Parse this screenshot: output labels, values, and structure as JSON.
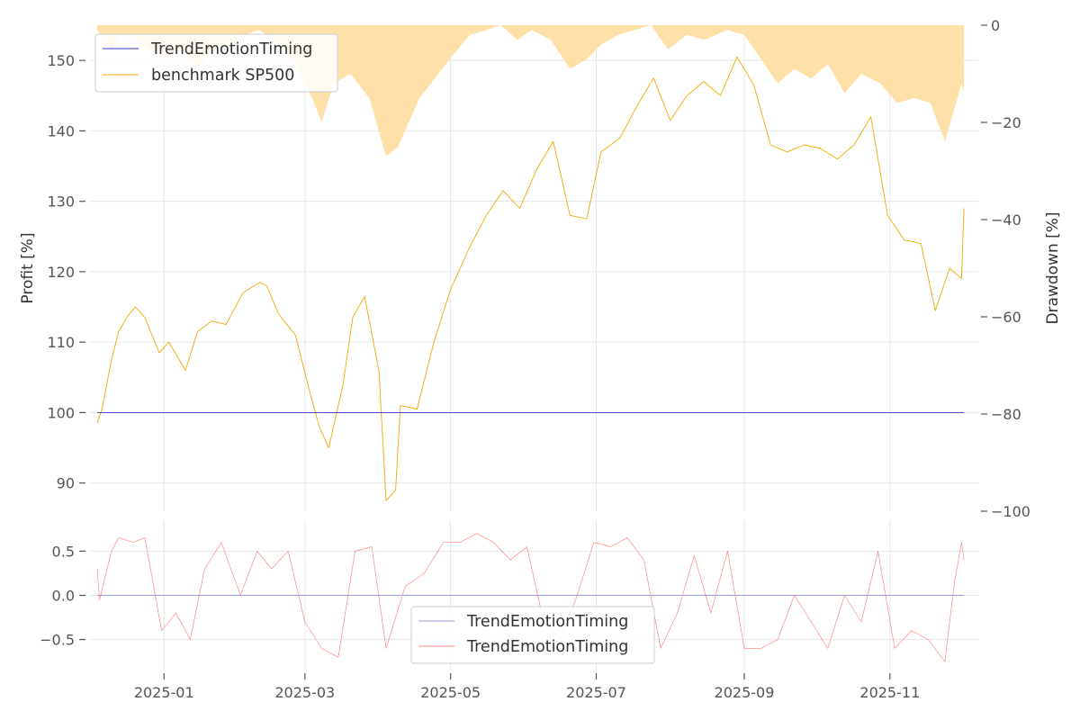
{
  "chart_data": [
    {
      "type": "line",
      "panel": "top",
      "ylabel": "Profit [%]",
      "ylim": [
        86,
        155
      ],
      "yticks": [
        90,
        100,
        110,
        120,
        130,
        140,
        150
      ],
      "x_range": [
        "2024-12-01",
        "2025-12-08"
      ],
      "grid": true,
      "legend": "top-left",
      "series": [
        {
          "name": "TrendEmotionTiming",
          "color": "#3333bb",
          "x": [
            "2024-12-04",
            "2025-12-02"
          ],
          "values": [
            100,
            100
          ]
        },
        {
          "name": "benchmark SP500",
          "color": "#f5a800",
          "x": [
            "2024-12-04",
            "2024-12-06",
            "2024-12-10",
            "2024-12-13",
            "2024-12-17",
            "2024-12-20",
            "2024-12-24",
            "2024-12-30",
            "2025-01-03",
            "2025-01-10",
            "2025-01-15",
            "2025-01-21",
            "2025-01-27",
            "2025-02-03",
            "2025-02-10",
            "2025-02-13",
            "2025-02-18",
            "2025-02-25",
            "2025-03-03",
            "2025-03-07",
            "2025-03-11",
            "2025-03-17",
            "2025-03-21",
            "2025-03-26",
            "2025-04-01",
            "2025-04-04",
            "2025-04-08",
            "2025-04-10",
            "2025-04-17",
            "2025-04-24",
            "2025-05-01",
            "2025-05-09",
            "2025-05-16",
            "2025-05-23",
            "2025-05-30",
            "2025-06-06",
            "2025-06-13",
            "2025-06-20",
            "2025-06-27",
            "2025-07-03",
            "2025-07-11",
            "2025-07-18",
            "2025-07-25",
            "2025-08-01",
            "2025-08-08",
            "2025-08-15",
            "2025-08-22",
            "2025-08-29",
            "2025-09-05",
            "2025-09-12",
            "2025-09-19",
            "2025-09-26",
            "2025-10-03",
            "2025-10-10",
            "2025-10-17",
            "2025-10-24",
            "2025-10-31",
            "2025-11-07",
            "2025-11-14",
            "2025-11-20",
            "2025-11-26",
            "2025-12-01",
            "2025-12-02"
          ],
          "values": [
            98.5,
            100.5,
            107.5,
            111.5,
            113.8,
            115.0,
            113.5,
            108.5,
            110.0,
            106.0,
            111.5,
            113.0,
            112.5,
            117.0,
            118.5,
            118.0,
            114.0,
            111.0,
            103.0,
            98.0,
            95.0,
            104.0,
            113.5,
            116.5,
            106.0,
            87.5,
            89.0,
            101.0,
            100.5,
            110.0,
            117.5,
            123.5,
            128.0,
            131.5,
            129.0,
            134.5,
            138.5,
            128.0,
            127.5,
            137.0,
            139.0,
            143.5,
            147.5,
            141.5,
            145.0,
            147.0,
            145.0,
            150.5,
            146.5,
            138.0,
            137.0,
            138.0,
            137.5,
            136.0,
            138.0,
            142.0,
            128.0,
            124.5,
            124.0,
            114.5,
            120.5,
            119.0,
            129.0
          ]
        }
      ]
    },
    {
      "type": "area",
      "panel": "top-right-axis",
      "ylabel": "Drawdown [%]",
      "ylim": [
        -100,
        0
      ],
      "yticks": [
        0,
        -20,
        -40,
        -60,
        -80,
        -100
      ],
      "series": [
        {
          "name": "",
          "color": "#ffe0a8",
          "x": [
            "2024-12-04",
            "2024-12-10",
            "2024-12-13",
            "2024-12-20",
            "2024-12-31",
            "2025-01-08",
            "2025-01-15",
            "2025-01-21",
            "2025-01-27",
            "2025-02-03",
            "2025-02-10",
            "2025-02-19",
            "2025-02-26",
            "2025-03-04",
            "2025-03-08",
            "2025-03-13",
            "2025-03-20",
            "2025-03-28",
            "2025-04-04",
            "2025-04-09",
            "2025-04-18",
            "2025-04-29",
            "2025-05-09",
            "2025-05-16",
            "2025-05-22",
            "2025-05-29",
            "2025-06-04",
            "2025-06-12",
            "2025-06-20",
            "2025-06-27",
            "2025-07-03",
            "2025-07-10",
            "2025-07-17",
            "2025-07-24",
            "2025-07-31",
            "2025-08-08",
            "2025-08-15",
            "2025-08-25",
            "2025-09-01",
            "2025-09-08",
            "2025-09-15",
            "2025-09-22",
            "2025-09-29",
            "2025-10-06",
            "2025-10-13",
            "2025-10-20",
            "2025-10-28",
            "2025-11-04",
            "2025-11-11",
            "2025-11-18",
            "2025-11-24",
            "2025-12-01",
            "2025-12-02"
          ],
          "values": [
            -1,
            -5,
            -2,
            -3,
            -7,
            -5,
            -9,
            -5,
            -4,
            -2,
            -1,
            -4,
            -9,
            -15,
            -20,
            -12,
            -10,
            -15,
            -27,
            -25,
            -15,
            -8,
            -2,
            -1,
            0,
            -3,
            -1,
            -3,
            -9,
            -7,
            -4,
            -2,
            -1,
            0,
            -5,
            -2,
            -3,
            -1,
            -2,
            -7,
            -12,
            -9,
            -11,
            -8,
            -14,
            -10,
            -12,
            -16,
            -15,
            -16,
            -24,
            -12,
            -14
          ]
        }
      ]
    },
    {
      "type": "line",
      "panel": "bottom",
      "ylim": [
        -0.85,
        0.85
      ],
      "yticks": [
        0.5,
        0.0,
        -0.5
      ],
      "grid": true,
      "legend": "bottom-center",
      "series": [
        {
          "name": "TrendEmotionTiming",
          "color": "#9999dd",
          "x": [
            "2024-12-04",
            "2025-12-02"
          ],
          "values": [
            0.0,
            0.0
          ]
        },
        {
          "name": "TrendEmotionTiming",
          "color": "#ff8888",
          "x": [
            "2024-12-04",
            "2024-12-05",
            "2024-12-10",
            "2024-12-13",
            "2024-12-19",
            "2024-12-24",
            "2024-12-31",
            "2025-01-06",
            "2025-01-12",
            "2025-01-18",
            "2025-01-25",
            "2025-02-02",
            "2025-02-09",
            "2025-02-15",
            "2025-02-22",
            "2025-03-01",
            "2025-03-08",
            "2025-03-15",
            "2025-03-22",
            "2025-03-29",
            "2025-04-04",
            "2025-04-12",
            "2025-04-20",
            "2025-04-28",
            "2025-05-05",
            "2025-05-12",
            "2025-05-19",
            "2025-05-26",
            "2025-06-02",
            "2025-06-09",
            "2025-06-16",
            "2025-06-23",
            "2025-06-30",
            "2025-07-07",
            "2025-07-14",
            "2025-07-21",
            "2025-07-28",
            "2025-08-04",
            "2025-08-11",
            "2025-08-18",
            "2025-08-25",
            "2025-09-01",
            "2025-09-08",
            "2025-09-15",
            "2025-09-22",
            "2025-09-29",
            "2025-10-06",
            "2025-10-13",
            "2025-10-20",
            "2025-10-27",
            "2025-11-03",
            "2025-11-10",
            "2025-11-17",
            "2025-11-24",
            "2025-11-28",
            "2025-12-01",
            "2025-12-02"
          ],
          "values": [
            0.3,
            -0.05,
            0.5,
            0.65,
            0.6,
            0.65,
            -0.4,
            -0.2,
            -0.5,
            0.3,
            0.6,
            0.0,
            0.5,
            0.3,
            0.5,
            -0.3,
            -0.6,
            -0.7,
            0.5,
            0.55,
            -0.6,
            0.1,
            0.25,
            0.6,
            0.6,
            0.7,
            0.6,
            0.4,
            0.55,
            -0.3,
            -0.5,
            0.0,
            0.6,
            0.55,
            0.65,
            0.4,
            -0.6,
            -0.2,
            0.45,
            -0.2,
            0.5,
            -0.6,
            -0.6,
            -0.5,
            0.0,
            -0.3,
            -0.6,
            0.0,
            -0.3,
            0.5,
            -0.6,
            -0.4,
            -0.5,
            -0.75,
            0.15,
            0.6,
            0.4
          ]
        }
      ]
    }
  ],
  "x_tick_labels": [
    {
      "date": "2025-01-01",
      "label": "2025-01"
    },
    {
      "date": "2025-03-01",
      "label": "2025-03"
    },
    {
      "date": "2025-05-01",
      "label": "2025-05"
    },
    {
      "date": "2025-07-01",
      "label": "2025-07"
    },
    {
      "date": "2025-09-01",
      "label": "2025-09"
    },
    {
      "date": "2025-11-01",
      "label": "2025-11"
    }
  ]
}
